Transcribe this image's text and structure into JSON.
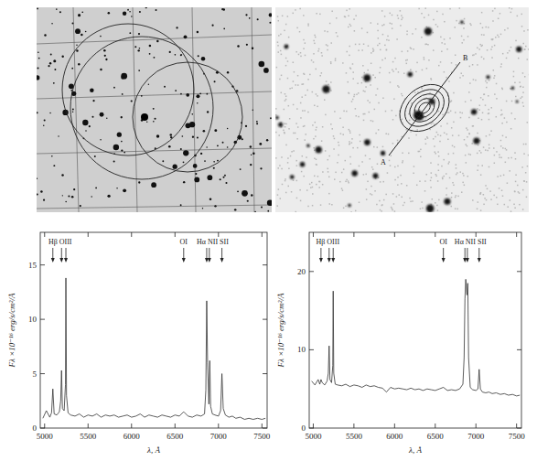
{
  "images": {
    "slit": {
      "start_label": "A",
      "end_label": "B"
    }
  },
  "chart_data": [
    {
      "type": "line",
      "color": "#333333",
      "x_label": "λ, Å",
      "y_label": "Fλ ×10⁻¹⁶ erg/s/cm²/Å",
      "xlim": [
        4950,
        7560
      ],
      "xticks": [
        5000,
        5500,
        6000,
        6500,
        7000,
        7500
      ],
      "ylim": [
        0,
        18
      ],
      "yticks": [
        0,
        5,
        10,
        15
      ],
      "annotations": [
        {
          "label": "Hβ OIII",
          "x": [
            5095,
            5195,
            5245
          ]
        },
        {
          "label": "OI",
          "x": [
            6600
          ]
        },
        {
          "label": "Hα NII SII",
          "x": [
            6865,
            6895,
            7040
          ]
        }
      ],
      "x": [
        4980,
        5020,
        5060,
        5080,
        5095,
        5110,
        5140,
        5170,
        5185,
        5195,
        5205,
        5225,
        5240,
        5245,
        5252,
        5270,
        5300,
        5350,
        5400,
        5450,
        5500,
        5550,
        5600,
        5650,
        5700,
        5750,
        5800,
        5850,
        5900,
        5950,
        6000,
        6050,
        6100,
        6150,
        6200,
        6250,
        6300,
        6350,
        6400,
        6450,
        6500,
        6550,
        6600,
        6650,
        6700,
        6750,
        6800,
        6840,
        6855,
        6865,
        6875,
        6890,
        6900,
        6910,
        6930,
        6960,
        7000,
        7025,
        7040,
        7055,
        7080,
        7120,
        7160,
        7200,
        7250,
        7300,
        7350,
        7400,
        7450,
        7500,
        7540
      ],
      "values": [
        0.9,
        1.6,
        1.0,
        1.4,
        3.6,
        1.3,
        1.2,
        1.5,
        2.5,
        5.3,
        1.8,
        1.6,
        4.0,
        13.8,
        3.0,
        1.4,
        1.2,
        1.1,
        1.3,
        1.0,
        1.2,
        1.1,
        1.3,
        1.0,
        1.2,
        1.1,
        1.2,
        1.0,
        1.1,
        1.2,
        1.0,
        1.1,
        1.3,
        1.0,
        1.2,
        1.1,
        1.0,
        1.2,
        1.1,
        1.0,
        1.2,
        1.1,
        1.5,
        1.1,
        1.0,
        1.2,
        1.1,
        1.3,
        3.5,
        11.7,
        6.0,
        2.2,
        6.2,
        2.0,
        1.3,
        1.2,
        1.1,
        1.6,
        5.0,
        1.8,
        1.2,
        1.0,
        1.1,
        0.9,
        1.0,
        0.8,
        0.9,
        0.8,
        0.9,
        0.8,
        0.9
      ]
    },
    {
      "type": "line",
      "color": "#333333",
      "x_label": "λ, Å",
      "y_label": "Fλ ×10⁻¹⁶ erg/s/cm²/Å",
      "xlim": [
        4950,
        7560
      ],
      "xticks": [
        5000,
        5500,
        6000,
        6500,
        7000,
        7500
      ],
      "ylim": [
        0,
        25
      ],
      "yticks": [
        0,
        10,
        20
      ],
      "annotations": [
        {
          "label": "Hβ OIII",
          "x": [
            5095,
            5195,
            5245
          ]
        },
        {
          "label": "OI",
          "x": [
            6600
          ]
        },
        {
          "label": "Hα NII SII",
          "x": [
            6865,
            6895,
            7040
          ]
        }
      ],
      "x": [
        4980,
        5020,
        5060,
        5080,
        5095,
        5110,
        5140,
        5170,
        5185,
        5195,
        5205,
        5225,
        5240,
        5245,
        5252,
        5270,
        5300,
        5350,
        5400,
        5450,
        5500,
        5550,
        5600,
        5650,
        5700,
        5750,
        5800,
        5850,
        5900,
        5950,
        6000,
        6050,
        6100,
        6150,
        6200,
        6250,
        6300,
        6350,
        6400,
        6450,
        6500,
        6550,
        6600,
        6650,
        6700,
        6750,
        6800,
        6840,
        6855,
        6865,
        6875,
        6890,
        6900,
        6910,
        6930,
        6960,
        7000,
        7025,
        7040,
        7055,
        7080,
        7120,
        7160,
        7200,
        7250,
        7300,
        7350,
        7400,
        7450,
        7500,
        7540
      ],
      "values": [
        6.0,
        5.5,
        6.2,
        5.6,
        6.2,
        5.8,
        5.5,
        6.0,
        7.0,
        10.5,
        6.2,
        5.8,
        8.0,
        17.5,
        7.0,
        5.6,
        5.5,
        5.4,
        5.6,
        5.3,
        5.5,
        5.4,
        5.2,
        5.5,
        5.3,
        5.4,
        5.2,
        5.1,
        4.6,
        5.2,
        5.0,
        5.1,
        5.0,
        4.9,
        5.1,
        4.9,
        5.0,
        4.8,
        5.0,
        4.9,
        4.8,
        5.0,
        5.2,
        4.8,
        4.9,
        4.8,
        5.0,
        5.6,
        9.0,
        16.5,
        19.0,
        17.0,
        18.5,
        9.0,
        5.2,
        4.9,
        4.8,
        5.0,
        7.5,
        5.0,
        4.6,
        4.5,
        4.6,
        4.4,
        4.5,
        4.3,
        4.4,
        4.2,
        4.3,
        4.1,
        4.2
      ]
    }
  ]
}
